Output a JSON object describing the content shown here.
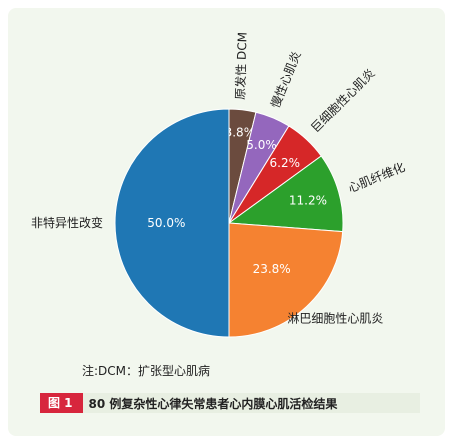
{
  "chart_data": {
    "type": "pie",
    "title": "",
    "slices": [
      {
        "label": "原发性 DCM",
        "value": 3.8,
        "display": "3.8%",
        "color": "#6b4b3e"
      },
      {
        "label": "慢性心肌炎",
        "value": 5.0,
        "display": "5.0%",
        "color": "#9467bd"
      },
      {
        "label": "巨细胞性心肌炎",
        "value": 6.2,
        "display": "6.2%",
        "color": "#d62728"
      },
      {
        "label": "心肌纤维化",
        "value": 11.2,
        "display": "11.2%",
        "color": "#2ca02c"
      },
      {
        "label": "淋巴细胞性心肌炎",
        "value": 23.8,
        "display": "23.8%",
        "color": "#f58231"
      },
      {
        "label": "非特异性改变",
        "value": 50.0,
        "display": "50.0%",
        "color": "#1f77b4"
      }
    ]
  },
  "footnote": "注:DCM：扩张型心肌病",
  "caption": {
    "figure_number": "图 1",
    "title": "80 例复杂性心律失常患者心内膜心肌活检结果"
  }
}
